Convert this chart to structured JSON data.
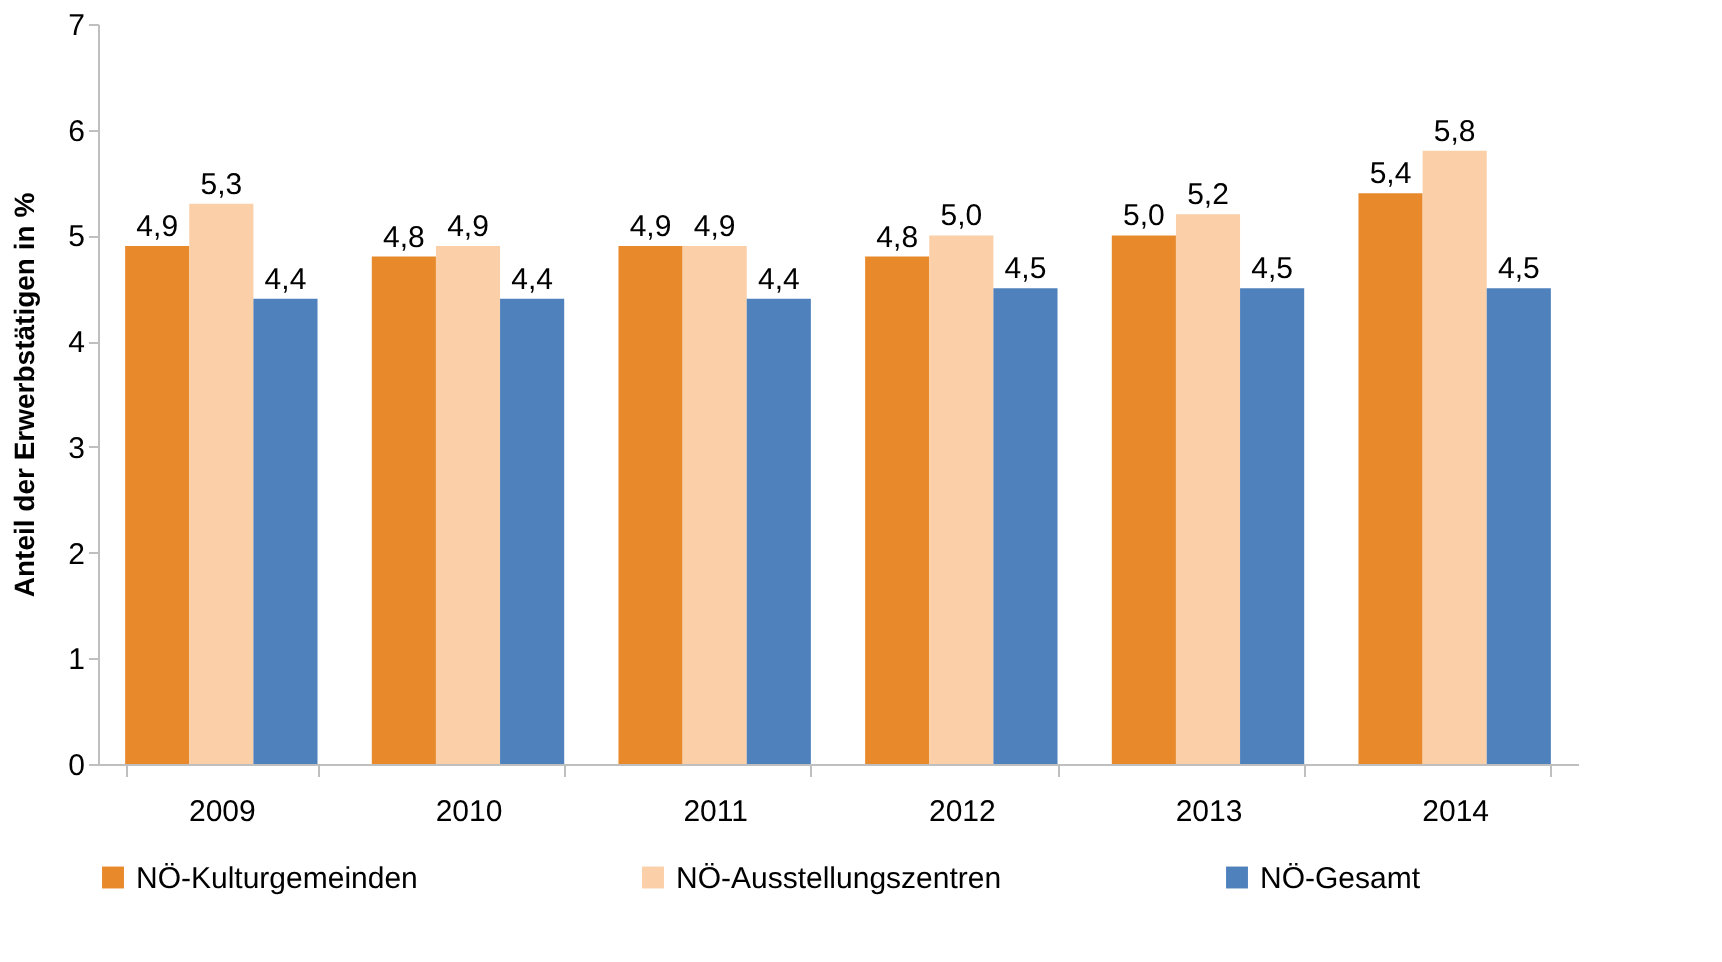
{
  "chart_data": {
    "type": "bar",
    "ylabel": "Anteil der Erwerbstätigen in %",
    "categories": [
      "2009",
      "2010",
      "2011",
      "2012",
      "2013",
      "2014"
    ],
    "series": [
      {
        "name": "NÖ-Kulturgemeinden",
        "color": "#e8892b",
        "values": [
          4.9,
          4.8,
          4.9,
          4.8,
          5.0,
          5.4
        ],
        "value_labels": [
          "4,9",
          "4,8",
          "4,9",
          "4,8",
          "5,0",
          "5,4"
        ]
      },
      {
        "name": "NÖ-Ausstellungszentren",
        "color": "#fbcfa7",
        "values": [
          5.3,
          4.9,
          4.9,
          5.0,
          5.2,
          5.8
        ],
        "value_labels": [
          "5,3",
          "4,9",
          "4,9",
          "5,0",
          "5,2",
          "5,8"
        ]
      },
      {
        "name": "NÖ-Gesamt",
        "color": "#4f81bd",
        "values": [
          4.4,
          4.4,
          4.4,
          4.5,
          4.5,
          4.5
        ],
        "value_labels": [
          "4,4",
          "4,4",
          "4,4",
          "4,5",
          "4,5",
          "4,5"
        ]
      }
    ],
    "ylim": [
      0,
      7
    ],
    "yticks": [
      0,
      1,
      2,
      3,
      4,
      5,
      6,
      7
    ],
    "grid": false,
    "legend": "bottom"
  }
}
